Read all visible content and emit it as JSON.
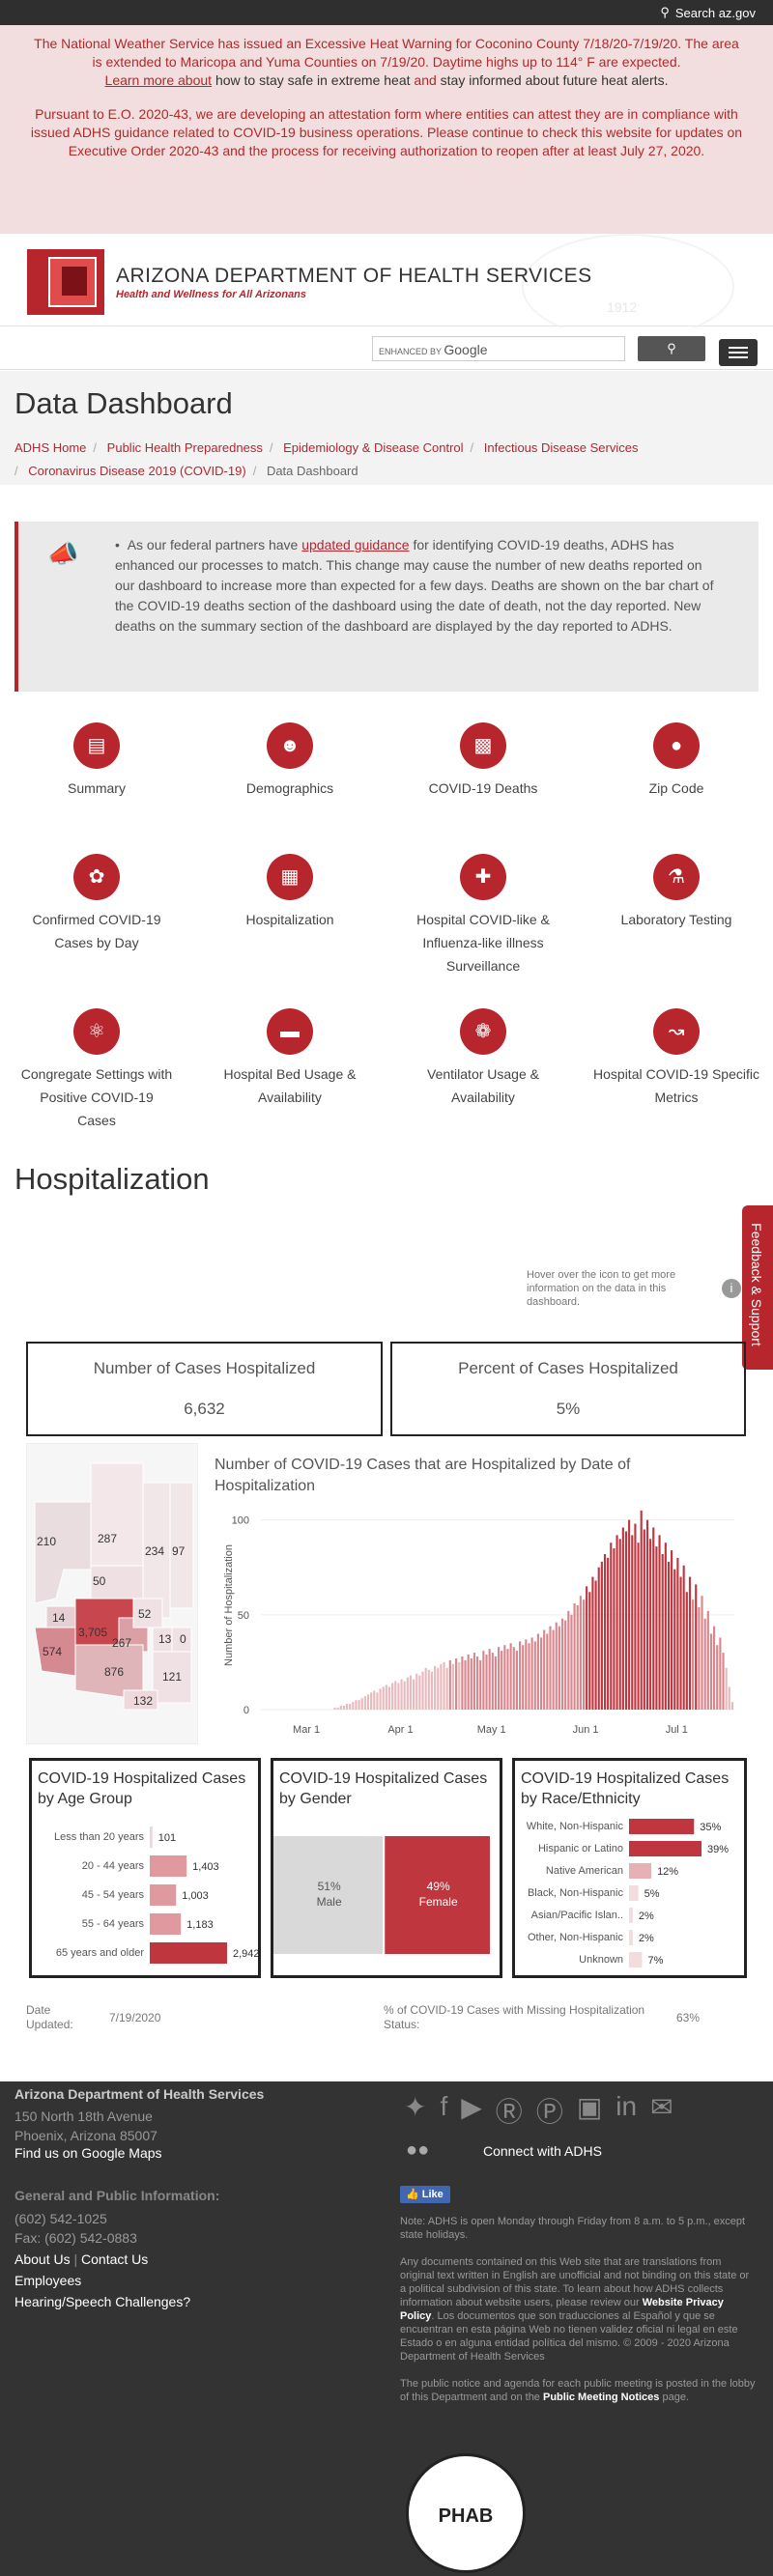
{
  "topbar": {
    "search_label": "Search az.gov"
  },
  "alert": {
    "p1_main": "The National Weather Service has issued an Excessive Heat Warning for Coconino County 7/18/20-7/19/20. The area is extended to Maricopa and Yuma Counties on 7/19/20. Daytime highs up to 114° F are expected.",
    "p1_link1": "Learn more about",
    "p1_mid": "how to stay safe in extreme heat",
    "p1_and": "and",
    "p1_end": "stay informed about future heat alerts.",
    "p2": "Pursuant to E.O. 2020-43, we are developing an attestation form where entities can attest they are in compliance with issued ADHS guidance related to COVID-19 business operations. Please continue to check this website for updates on Executive Order 2020-43 and the process for receiving authorization to reopen after at least July 27, 2020."
  },
  "header": {
    "brand": "ARIZONA DEPARTMENT OF HEALTH SERVICES",
    "tagline": "Health and Wellness for All Arizonans",
    "seal_year": "1912"
  },
  "search": {
    "placeholder_prefix": "ENHANCED BY",
    "google": "Google"
  },
  "page": {
    "title": "Data Dashboard"
  },
  "breadcrumbs": [
    "ADHS Home",
    "Public Health Preparedness",
    "Epidemiology & Disease Control",
    "Infectious Disease Services",
    "Coronavirus Disease 2019 (COVID-19)",
    "Data Dashboard"
  ],
  "notice": {
    "t1": "As our federal partners have",
    "link": "updated guidance",
    "t2": "for identifying COVID-19 deaths, ADHS has enhanced our processes to match. This change may cause the number of new deaths reported on our dashboard to increase more than expected for a few days. Deaths are shown on the bar chart of the COVID-19 deaths section of the dashboard using the date of death, not the day reported. New deaths on the summary section of the dashboard are displayed by the day reported to ADHS."
  },
  "nav": [
    {
      "label": "Summary",
      "icon": "document-icon"
    },
    {
      "label": "Demographics",
      "icon": "people-icon"
    },
    {
      "label": "COVID-19 Deaths",
      "icon": "bar-chart-icon"
    },
    {
      "label": "Zip Code",
      "icon": "location-pin-icon"
    },
    {
      "label": "Confirmed COVID-19 Cases by Day",
      "icon": "network-icon"
    },
    {
      "label": "Hospitalization",
      "icon": "building-icon"
    },
    {
      "label": "Hospital COVID-like & Influenza-like illness Surveillance",
      "icon": "hospital-icon"
    },
    {
      "label": "Laboratory Testing",
      "icon": "test-tubes-icon"
    },
    {
      "label": "Congregate Settings with Positive COVID-19 Cases",
      "icon": "microscope-icon"
    },
    {
      "label": "Hospital Bed Usage & Availability",
      "icon": "bed-icon"
    },
    {
      "label": "Ventilator Usage & Availability",
      "icon": "lungs-icon"
    },
    {
      "label": "Hospital COVID-19 Specific Metrics",
      "icon": "line-chart-icon"
    }
  ],
  "section": {
    "title": "Hospitalization",
    "hover_note": "Hover over the icon to get more information on the data in this dashboard.",
    "info_icon": "i"
  },
  "feedback": {
    "label": "Feedback & Support"
  },
  "kpis": [
    {
      "label": "Number of Cases Hospitalized",
      "value": "6,632"
    },
    {
      "label": "Percent of Cases Hospitalized",
      "value": "5%"
    }
  ],
  "county_map": {
    "labels": [
      "210",
      "287",
      "234",
      "97",
      "50",
      "14",
      "3,705",
      "267",
      "52",
      "13",
      "0",
      "574",
      "876",
      "121",
      "132"
    ]
  },
  "panels": {
    "age_title": "COVID-19 Hospitalized Cases by Age Group",
    "gender_title": "COVID-19 Hospitalized Cases by Gender",
    "race_title": "COVID-19 Hospitalized Cases by Race/Ethnicity"
  },
  "chart_data": [
    {
      "type": "bar",
      "title": "Number of COVID-19 Cases that are Hospitalized by Date of Hospitalization",
      "ylabel": "Number of Hospitalization",
      "x_ticks": [
        "Mar 1",
        "Apr 1",
        "May 1",
        "Jun 1",
        "Jul 1"
      ],
      "y_ticks": [
        0,
        50,
        100
      ],
      "ylim": [
        0,
        110
      ],
      "start_offset_days_before_mar1": 15,
      "values": [
        0,
        0,
        0,
        0,
        0,
        0,
        0,
        0,
        0,
        0,
        0,
        0,
        0,
        0,
        0,
        0,
        0,
        0,
        0,
        0,
        0,
        0,
        0,
        0,
        1,
        1,
        2,
        2,
        3,
        3,
        4,
        5,
        5,
        6,
        7,
        8,
        9,
        10,
        9,
        11,
        12,
        13,
        12,
        14,
        15,
        14,
        16,
        15,
        17,
        18,
        16,
        19,
        18,
        20,
        22,
        21,
        20,
        23,
        22,
        24,
        25,
        22,
        26,
        24,
        27,
        25,
        28,
        26,
        29,
        27,
        30,
        28,
        26,
        31,
        29,
        32,
        30,
        28,
        33,
        31,
        34,
        32,
        35,
        33,
        31,
        36,
        34,
        37,
        35,
        38,
        36,
        40,
        38,
        42,
        40,
        44,
        42,
        46,
        44,
        48,
        47,
        52,
        50,
        56,
        55,
        60,
        58,
        65,
        62,
        70,
        68,
        75,
        78,
        82,
        80,
        88,
        85,
        92,
        90,
        96,
        94,
        100,
        92,
        98,
        88,
        105,
        95,
        100,
        90,
        96,
        86,
        92,
        82,
        88,
        78,
        84,
        74,
        80,
        70,
        76,
        62,
        70,
        58,
        66,
        54,
        60,
        48,
        52,
        40,
        44,
        34,
        38,
        30,
        22,
        12,
        4
      ]
    },
    {
      "type": "bar",
      "title": "COVID-19 Hospitalized Cases by Age Group",
      "categories": [
        "Less than 20 years",
        "20 - 44 years",
        "45 - 54 years",
        "55 - 64 years",
        "65 years and older"
      ],
      "values": [
        101,
        1403,
        1003,
        1183,
        2942
      ],
      "labels": [
        "101",
        "1,403",
        "1,003",
        "1,183",
        "2,942"
      ]
    },
    {
      "type": "bar",
      "title": "COVID-19 Hospitalized Cases by Gender",
      "categories": [
        "Male",
        "Female"
      ],
      "values": [
        51,
        49
      ],
      "labels": [
        "51%",
        "49%"
      ]
    },
    {
      "type": "bar",
      "title": "COVID-19 Hospitalized Cases by Race/Ethnicity",
      "categories": [
        "White, Non-Hispanic",
        "Hispanic or Latino",
        "Native American",
        "Black, Non-Hispanic",
        "Asian/Pacific Islan..",
        "Other, Non-Hispanic",
        "Unknown"
      ],
      "values": [
        35,
        39,
        12,
        5,
        2,
        2,
        7
      ],
      "labels": [
        "35%",
        "39%",
        "12%",
        "5%",
        "2%",
        "2%",
        "7%"
      ]
    }
  ],
  "footline": {
    "date_label": "Date Updated:",
    "date": "7/19/2020",
    "missing_label": "% of COVID-19 Cases with Missing Hospitalization Status:",
    "missing_value": "63%"
  },
  "footer": {
    "org": "Arizona Department of Health Services",
    "addr1": "150 North 18th Avenue",
    "addr2": "Phoenix, Arizona 85007",
    "maps": "Find us on Google Maps",
    "general": "General and Public Information:",
    "phone": "(602) 542-1025",
    "fax": "Fax: (602) 542-0883",
    "about": "About Us",
    "contact": "Contact Us",
    "employees": "Employees",
    "hearing": "Hearing/Speech Challenges?",
    "connect": "Connect with ADHS",
    "like": "Like",
    "note": "Note: ADHS is open Monday through Friday from 8 a.m. to 5 p.m., except state holidays.",
    "translate_a": "Any documents contained on this Web site that are translations from original text written in English are unofficial and not binding on this state or a political subdivision of this state. To learn about how ADHS collects information about website users, please review our",
    "privacy": "Website Privacy Policy",
    "translate_b": ". Los documentos que son traducciones al Español y que se encuentran en esta página Web no tienen validez oficial ni legal en este Estado o en alguna entidad política del mismo. © 2009 - 2020 Arizona Department of Health Services",
    "public_a": "The public notice and agenda for each public meeting is posted in the lobby of this Department and on the",
    "public_link": "Public Meeting Notices",
    "public_b": "page.",
    "phab": "PHAB"
  }
}
